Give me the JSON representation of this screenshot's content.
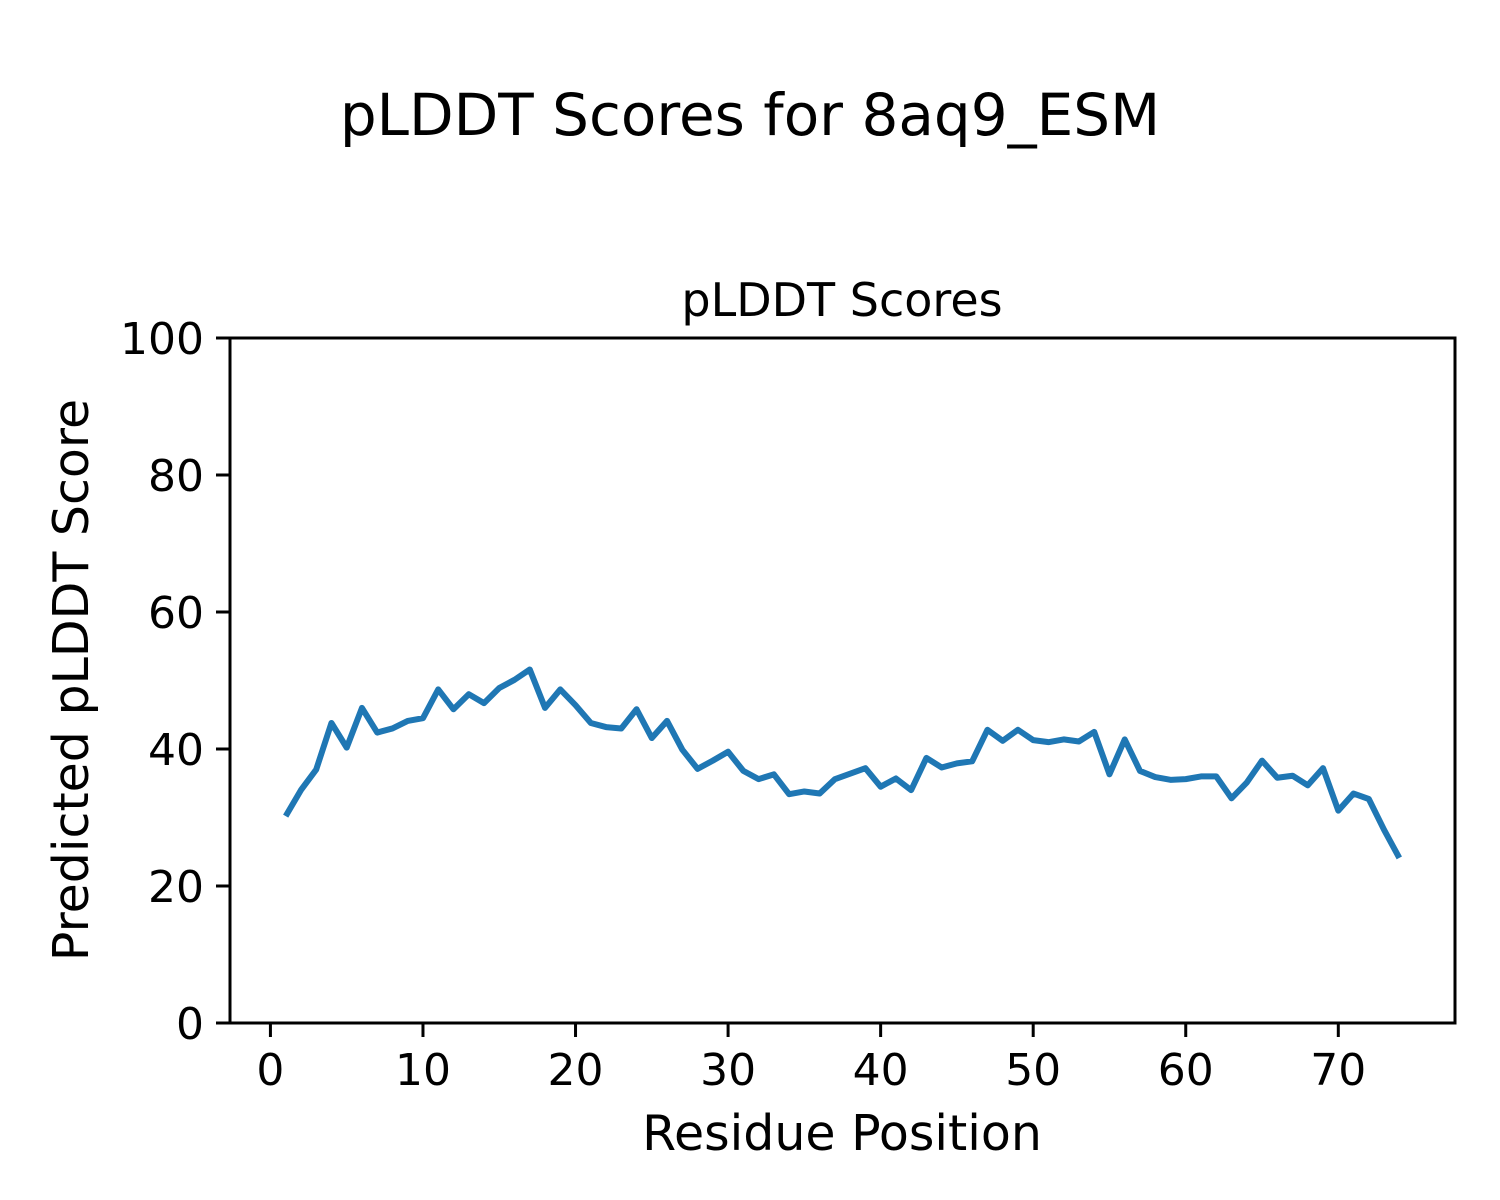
{
  "figure": {
    "suptitle": "pLDDT Scores for 8aq9_ESM",
    "background_color": "#ffffff",
    "text_color": "#000000"
  },
  "chart_data": {
    "type": "line",
    "title": "pLDDT Scores",
    "xlabel": "Residue Position",
    "ylabel": "Predicted pLDDT Score",
    "legend": null,
    "grid": false,
    "line_color": "#1f77b4",
    "line_width": 6,
    "xlim": [
      -2.65,
      77.65
    ],
    "ylim": [
      0,
      100
    ],
    "xticks": [
      0,
      10,
      20,
      30,
      40,
      50,
      60,
      70
    ],
    "yticks": [
      0,
      20,
      40,
      60,
      80,
      100
    ],
    "x": [
      1,
      2,
      3,
      4,
      5,
      6,
      7,
      8,
      9,
      10,
      11,
      12,
      13,
      14,
      15,
      16,
      17,
      18,
      19,
      20,
      21,
      22,
      23,
      24,
      25,
      26,
      27,
      28,
      29,
      30,
      31,
      32,
      33,
      34,
      35,
      36,
      37,
      38,
      39,
      40,
      41,
      42,
      43,
      44,
      45,
      46,
      47,
      48,
      49,
      50,
      51,
      52,
      53,
      54,
      55,
      56,
      57,
      58,
      59,
      60,
      61,
      62,
      63,
      64,
      65,
      66,
      67,
      68,
      69,
      70,
      71,
      72,
      73,
      74
    ],
    "values": [
      30.2,
      34.0,
      37.0,
      43.8,
      40.2,
      46.0,
      42.4,
      43.0,
      44.1,
      44.5,
      48.7,
      45.8,
      48.0,
      46.7,
      48.9,
      50.1,
      51.6,
      46.0,
      48.7,
      46.4,
      43.8,
      43.2,
      43.0,
      45.8,
      41.6,
      44.1,
      39.9,
      37.1,
      38.3,
      39.6,
      36.8,
      35.6,
      36.3,
      33.4,
      33.8,
      33.5,
      35.6,
      36.4,
      37.2,
      34.5,
      35.7,
      34.0,
      38.7,
      37.3,
      37.9,
      38.2,
      42.8,
      41.2,
      42.8,
      41.3,
      41.0,
      41.4,
      41.1,
      42.5,
      36.3,
      41.4,
      36.8,
      35.9,
      35.5,
      35.6,
      36.0,
      36.0,
      32.8,
      35.1,
      38.3,
      35.8,
      36.1,
      34.7,
      37.2,
      31.0,
      33.5,
      32.7,
      28.2,
      24.1
    ]
  }
}
